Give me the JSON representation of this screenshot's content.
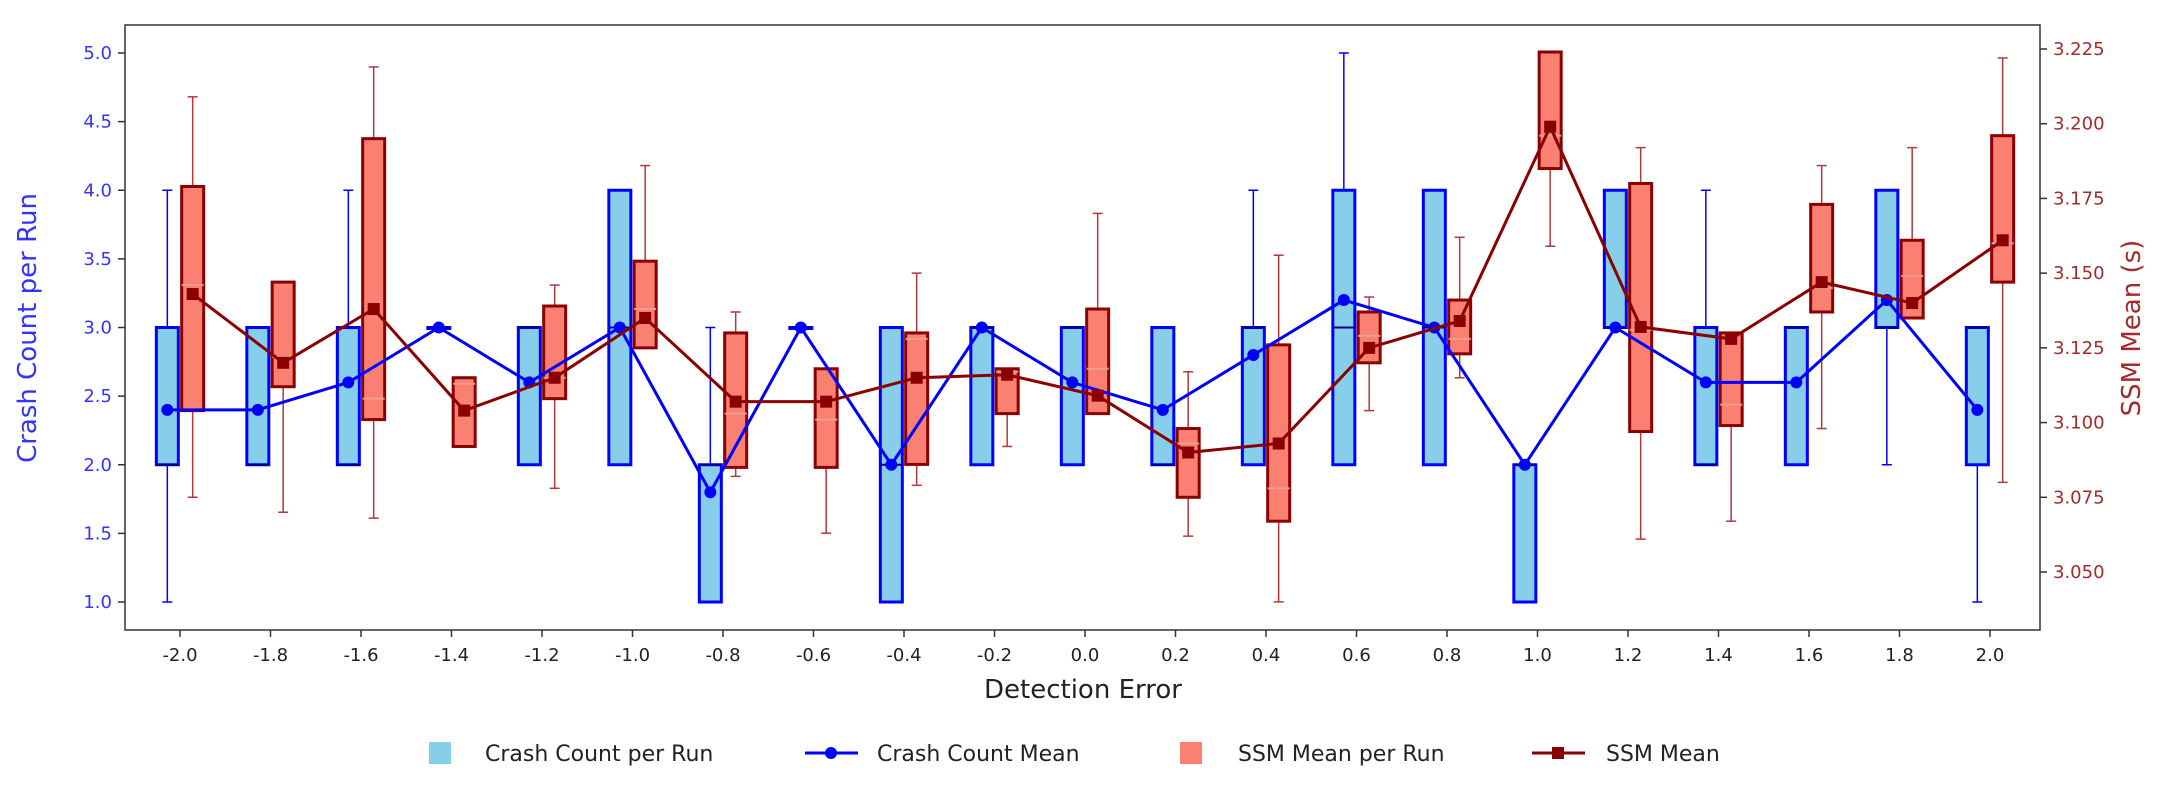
{
  "chart_data": {
    "type": "box+line (dual axis)",
    "xlabel": "Detection Error",
    "ylabel_left": "Crash Count per Run",
    "ylabel_right": "SSM Mean (s)",
    "x": [
      -2.0,
      -1.8,
      -1.6,
      -1.4,
      -1.2,
      -1.0,
      -0.8,
      -0.6,
      -0.4,
      -0.2,
      0.0,
      0.2,
      0.4,
      0.6,
      0.8,
      1.0,
      1.2,
      1.4,
      1.6,
      1.8,
      2.0
    ],
    "x_tick_labels": [
      "-2.0",
      "-1.8",
      "-1.6",
      "-1.4",
      "-1.2",
      "-1.0",
      "-0.8",
      "-0.6",
      "-0.4",
      "-0.2",
      "0.0",
      "0.2",
      "0.4",
      "0.6",
      "0.8",
      "1.0",
      "1.2",
      "1.4",
      "1.6",
      "1.8",
      "2.0"
    ],
    "xlim": [
      -2.18,
      2.28
    ],
    "ylim_left": [
      0.8,
      5.2
    ],
    "ylim_right": [
      3.031,
      3.232
    ],
    "y_ticks_left": [
      "1.0",
      "1.5",
      "2.0",
      "2.5",
      "3.0",
      "3.5",
      "4.0",
      "4.5",
      "5.0"
    ],
    "y_ticks_right": [
      "3.050",
      "3.075",
      "3.100",
      "3.125",
      "3.150",
      "3.175",
      "3.200",
      "3.225"
    ],
    "grid": false,
    "legend_placement": "bottom-center",
    "colors": {
      "crash_box_fill": "#87CEEB",
      "crash_edge": "#0000FF",
      "crash_median": "#00008B",
      "ssm_box_fill": "#FA8072",
      "ssm_edge": "#8B0000",
      "ssm_whisker": "#B03A3A",
      "ssm_median": "#E8A090",
      "left_axis_text": "#3333FF",
      "right_axis_text": "#A52A2A"
    },
    "legend": [
      {
        "label": "Crash Count per Run",
        "kind": "patch",
        "color": "#87CEEB"
      },
      {
        "label": "Crash Count Mean",
        "kind": "line-circle",
        "color": "#0000FF"
      },
      {
        "label": "SSM Mean per Run",
        "kind": "patch",
        "color": "#FA8072"
      },
      {
        "label": "SSM Mean",
        "kind": "line-square",
        "color": "#8B0000"
      }
    ],
    "crash_count_per_run": [
      {
        "x": -2.0,
        "whislo": 1,
        "q1": 2,
        "med": 2,
        "q3": 3,
        "whishi": 4
      },
      {
        "x": -1.8,
        "whislo": 2,
        "q1": 2,
        "med": 2,
        "q3": 3,
        "whishi": 3
      },
      {
        "x": -1.6,
        "whislo": 2,
        "q1": 2,
        "med": 2,
        "q3": 3,
        "whishi": 4
      },
      {
        "x": -1.4,
        "whislo": 3,
        "q1": 3,
        "med": 3,
        "q3": 3,
        "whishi": 3
      },
      {
        "x": -1.2,
        "whislo": 2,
        "q1": 2,
        "med": 3,
        "q3": 3,
        "whishi": 3
      },
      {
        "x": -1.0,
        "whislo": 2,
        "q1": 2,
        "med": 3,
        "q3": 4,
        "whishi": 4
      },
      {
        "x": -0.8,
        "whislo": 1,
        "q1": 1,
        "med": 2,
        "q3": 2,
        "whishi": 3
      },
      {
        "x": -0.6,
        "whislo": 3,
        "q1": 3,
        "med": 3,
        "q3": 3,
        "whishi": 3
      },
      {
        "x": -0.4,
        "whislo": 1,
        "q1": 1,
        "med": 2,
        "q3": 3,
        "whishi": 3
      },
      {
        "x": -0.2,
        "whislo": 2,
        "q1": 2,
        "med": 3,
        "q3": 3,
        "whishi": 3
      },
      {
        "x": 0.0,
        "whislo": 2,
        "q1": 2,
        "med": 3,
        "q3": 3,
        "whishi": 3
      },
      {
        "x": 0.2,
        "whislo": 2,
        "q1": 2,
        "med": 2,
        "q3": 3,
        "whishi": 3
      },
      {
        "x": 0.4,
        "whislo": 2,
        "q1": 2,
        "med": 3,
        "q3": 3,
        "whishi": 4
      },
      {
        "x": 0.6,
        "whislo": 2,
        "q1": 2,
        "med": 3,
        "q3": 4,
        "whishi": 5
      },
      {
        "x": 0.8,
        "whislo": 2,
        "q1": 2,
        "med": 3,
        "q3": 4,
        "whishi": 4
      },
      {
        "x": 1.0,
        "whislo": 1,
        "q1": 1,
        "med": 2,
        "q3": 2,
        "whishi": 2
      },
      {
        "x": 1.2,
        "whislo": 3,
        "q1": 3,
        "med": 3,
        "q3": 4,
        "whishi": 4
      },
      {
        "x": 1.4,
        "whislo": 2,
        "q1": 2,
        "med": 2,
        "q3": 3,
        "whishi": 4
      },
      {
        "x": 1.6,
        "whislo": 2,
        "q1": 2,
        "med": 3,
        "q3": 3,
        "whishi": 3
      },
      {
        "x": 1.8,
        "whislo": 2,
        "q1": 3,
        "med": 3,
        "q3": 4,
        "whishi": 4
      },
      {
        "x": 2.0,
        "whislo": 1,
        "q1": 2,
        "med": 3,
        "q3": 3,
        "whishi": 3
      }
    ],
    "crash_count_mean": [
      2.4,
      2.4,
      2.6,
      3.0,
      2.6,
      3.0,
      1.8,
      3.0,
      2.0,
      3.0,
      2.6,
      2.4,
      2.8,
      3.2,
      3.0,
      2.0,
      3.0,
      2.6,
      2.6,
      3.2,
      2.4
    ],
    "ssm_mean_per_run": [
      {
        "x": -2.0,
        "whislo": 3.075,
        "q1": 3.104,
        "med": 3.146,
        "q3": 3.179,
        "whishi": 3.209
      },
      {
        "x": -1.8,
        "whislo": 3.07,
        "q1": 3.112,
        "med": 3.122,
        "q3": 3.147,
        "whishi": 3.147
      },
      {
        "x": -1.6,
        "whislo": 3.068,
        "q1": 3.101,
        "med": 3.108,
        "q3": 3.195,
        "whishi": 3.219
      },
      {
        "x": -1.4,
        "whislo": 3.092,
        "q1": 3.092,
        "med": 3.113,
        "q3": 3.115,
        "whishi": 3.115
      },
      {
        "x": -1.2,
        "whislo": 3.078,
        "q1": 3.108,
        "med": 3.115,
        "q3": 3.139,
        "whishi": 3.146
      },
      {
        "x": -1.0,
        "whislo": 3.125,
        "q1": 3.125,
        "med": 3.138,
        "q3": 3.154,
        "whishi": 3.186
      },
      {
        "x": -0.8,
        "whislo": 3.082,
        "q1": 3.085,
        "med": 3.103,
        "q3": 3.13,
        "whishi": 3.137
      },
      {
        "x": -0.6,
        "whislo": 3.063,
        "q1": 3.085,
        "med": 3.101,
        "q3": 3.118,
        "whishi": 3.118
      },
      {
        "x": -0.4,
        "whislo": 3.079,
        "q1": 3.086,
        "med": 3.128,
        "q3": 3.13,
        "whishi": 3.15
      },
      {
        "x": -0.2,
        "whislo": 3.092,
        "q1": 3.103,
        "med": 3.117,
        "q3": 3.118,
        "whishi": 3.118
      },
      {
        "x": 0.0,
        "whislo": 3.103,
        "q1": 3.103,
        "med": 3.118,
        "q3": 3.138,
        "whishi": 3.17
      },
      {
        "x": 0.2,
        "whislo": 3.062,
        "q1": 3.075,
        "med": 3.093,
        "q3": 3.098,
        "whishi": 3.117
      },
      {
        "x": 0.4,
        "whislo": 3.04,
        "q1": 3.067,
        "med": 3.078,
        "q3": 3.126,
        "whishi": 3.156
      },
      {
        "x": 0.6,
        "whislo": 3.104,
        "q1": 3.12,
        "med": 3.129,
        "q3": 3.137,
        "whishi": 3.142
      },
      {
        "x": 0.8,
        "whislo": 3.115,
        "q1": 3.123,
        "med": 3.128,
        "q3": 3.141,
        "whishi": 3.162
      },
      {
        "x": 1.0,
        "whislo": 3.159,
        "q1": 3.185,
        "med": 3.196,
        "q3": 3.224,
        "whishi": 3.224
      },
      {
        "x": 1.2,
        "whislo": 3.061,
        "q1": 3.097,
        "med": 3.131,
        "q3": 3.18,
        "whishi": 3.192
      },
      {
        "x": 1.4,
        "whislo": 3.067,
        "q1": 3.099,
        "med": 3.106,
        "q3": 3.13,
        "whishi": 3.13
      },
      {
        "x": 1.6,
        "whislo": 3.098,
        "q1": 3.137,
        "med": 3.145,
        "q3": 3.173,
        "whishi": 3.186
      },
      {
        "x": 1.8,
        "whislo": 3.135,
        "q1": 3.135,
        "med": 3.149,
        "q3": 3.161,
        "whishi": 3.192
      },
      {
        "x": 2.0,
        "whislo": 3.08,
        "q1": 3.147,
        "med": 3.16,
        "q3": 3.196,
        "whishi": 3.222
      }
    ],
    "ssm_mean": [
      3.143,
      3.12,
      3.138,
      3.104,
      3.115,
      3.135,
      3.107,
      3.107,
      3.115,
      3.116,
      3.109,
      3.09,
      3.093,
      3.125,
      3.134,
      3.199,
      3.132,
      3.128,
      3.147,
      3.14,
      3.161
    ]
  }
}
